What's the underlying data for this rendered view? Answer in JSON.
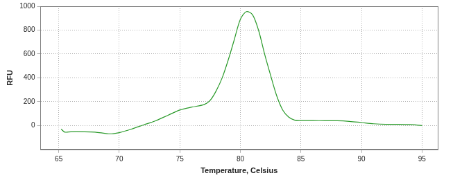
{
  "chart_data": {
    "type": "line",
    "x_label": "Temperature, Celsius",
    "y_label": "RFU",
    "x": [
      65.2,
      65.5,
      66,
      67,
      68,
      69,
      69.5,
      70,
      71,
      72,
      73,
      74,
      75,
      76,
      77,
      77.5,
      78,
      78.5,
      79,
      79.5,
      80,
      80.5,
      81,
      81.5,
      82,
      82.5,
      83,
      83.5,
      84,
      84.5,
      85,
      86,
      87,
      88,
      89,
      90,
      91,
      92,
      93,
      94,
      95
    ],
    "values": [
      -30,
      -55,
      -52,
      -52,
      -55,
      -68,
      -68,
      -60,
      -30,
      5,
      40,
      85,
      130,
      155,
      175,
      210,
      290,
      400,
      550,
      720,
      890,
      955,
      930,
      800,
      600,
      420,
      250,
      130,
      70,
      45,
      42,
      42,
      40,
      40,
      35,
      25,
      15,
      10,
      10,
      8,
      0
    ],
    "color": "#2a9a2a",
    "xlim": [
      63.5,
      96.3
    ],
    "ylim": [
      -200,
      1000
    ],
    "xticks": [
      65,
      70,
      75,
      80,
      85,
      90,
      95
    ],
    "yticks": [
      0,
      200,
      400,
      600,
      800,
      1000
    ],
    "grid": true
  }
}
